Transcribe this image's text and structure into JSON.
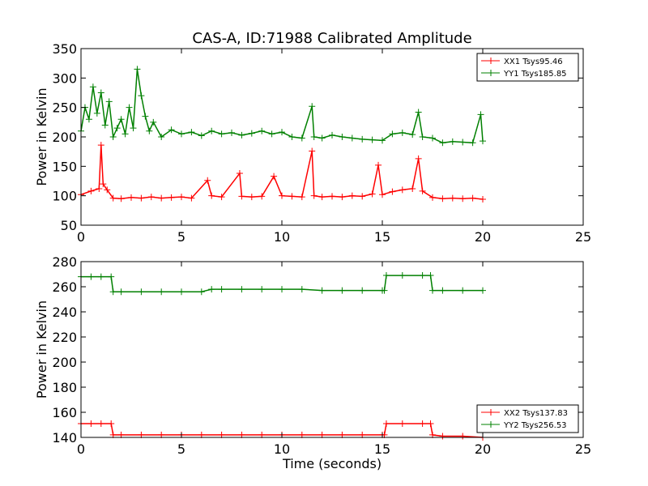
{
  "figure_title": "CAS-A, ID:71988 Calibrated Amplitude",
  "chart_data": [
    {
      "type": "line",
      "title": "CAS-A, ID:71988 Calibrated Amplitude",
      "xlabel": "",
      "ylabel": "Power in Kelvin",
      "xlim": [
        0,
        25
      ],
      "ylim": [
        50,
        350
      ],
      "xticks": [
        0,
        5,
        10,
        15,
        20,
        25
      ],
      "yticks": [
        50,
        100,
        150,
        200,
        250,
        300,
        350
      ],
      "grid": false,
      "legend_position": "top-right",
      "series": [
        {
          "name": "XX1 Tsys95.46",
          "color": "#ff0000",
          "marker": "+",
          "x": [
            0.0,
            0.5,
            0.9,
            1.0,
            1.1,
            1.3,
            1.6,
            2.0,
            2.5,
            3.0,
            3.5,
            4.0,
            4.5,
            5.0,
            5.5,
            6.3,
            6.5,
            7.0,
            7.9,
            8.0,
            8.5,
            9.0,
            9.6,
            10.0,
            10.5,
            11.0,
            11.5,
            11.6,
            12.0,
            12.5,
            13.0,
            13.5,
            14.0,
            14.5,
            14.8,
            15.0,
            15.5,
            16.0,
            16.5,
            16.8,
            17.0,
            17.5,
            18.0,
            18.5,
            19.0,
            19.5,
            20.0
          ],
          "y": [
            102,
            108,
            112,
            186,
            120,
            110,
            96,
            95,
            97,
            96,
            98,
            96,
            97,
            98,
            96,
            126,
            100,
            98,
            138,
            99,
            98,
            99,
            133,
            100,
            99,
            98,
            176,
            100,
            98,
            99,
            98,
            100,
            99,
            103,
            152,
            102,
            107,
            110,
            112,
            163,
            108,
            97,
            95,
            96,
            95,
            96,
            94
          ]
        },
        {
          "name": "YY1 Tsys185.85",
          "color": "#008000",
          "marker": "+",
          "x": [
            0.0,
            0.2,
            0.4,
            0.6,
            0.8,
            1.0,
            1.2,
            1.4,
            1.6,
            1.8,
            2.0,
            2.2,
            2.4,
            2.6,
            2.8,
            3.0,
            3.2,
            3.4,
            3.6,
            4.0,
            4.5,
            5.0,
            5.5,
            6.0,
            6.5,
            7.0,
            7.5,
            8.0,
            8.5,
            9.0,
            9.5,
            10.0,
            10.5,
            11.0,
            11.5,
            11.6,
            12.0,
            12.5,
            13.0,
            13.5,
            14.0,
            14.5,
            15.0,
            15.5,
            16.0,
            16.5,
            16.8,
            17.0,
            17.5,
            18.0,
            18.5,
            19.0,
            19.5,
            19.9,
            20.0
          ],
          "y": [
            210,
            250,
            230,
            285,
            240,
            275,
            220,
            260,
            200,
            215,
            230,
            205,
            250,
            215,
            315,
            270,
            235,
            210,
            225,
            200,
            212,
            205,
            208,
            202,
            210,
            205,
            207,
            203,
            206,
            210,
            205,
            208,
            200,
            198,
            252,
            200,
            198,
            203,
            200,
            198,
            196,
            195,
            194,
            205,
            207,
            204,
            242,
            200,
            198,
            190,
            192,
            191,
            190,
            238,
            193
          ]
        }
      ]
    },
    {
      "type": "line",
      "title": "",
      "xlabel": "Time (seconds)",
      "ylabel": "Power in Kelvin",
      "xlim": [
        0,
        25
      ],
      "ylim": [
        140,
        280
      ],
      "xticks": [
        0,
        5,
        10,
        15,
        20,
        25
      ],
      "yticks": [
        140,
        160,
        180,
        200,
        220,
        240,
        260,
        280
      ],
      "grid": false,
      "legend_position": "bottom-right",
      "series": [
        {
          "name": "XX2 Tsys137.83",
          "color": "#ff0000",
          "marker": "+",
          "x": [
            0.0,
            0.5,
            1.0,
            1.5,
            1.6,
            2.0,
            3.0,
            4.0,
            5.0,
            6.0,
            7.0,
            8.0,
            9.0,
            10.0,
            11.0,
            12.0,
            13.0,
            14.0,
            15.0,
            15.1,
            15.2,
            16.0,
            17.0,
            17.4,
            17.5,
            18.0,
            19.0,
            20.0
          ],
          "y": [
            151,
            151,
            151,
            151,
            142,
            142,
            142,
            142,
            142,
            142,
            142,
            142,
            142,
            142,
            142,
            142,
            142,
            142,
            142,
            142,
            151,
            151,
            151,
            151,
            142,
            141,
            141,
            140
          ]
        },
        {
          "name": "YY2 Tsys256.53",
          "color": "#008000",
          "marker": "+",
          "x": [
            0.0,
            0.5,
            1.0,
            1.5,
            1.6,
            2.0,
            3.0,
            4.0,
            5.0,
            6.0,
            6.5,
            7.0,
            8.0,
            9.0,
            10.0,
            11.0,
            12.0,
            13.0,
            14.0,
            15.0,
            15.1,
            15.2,
            16.0,
            17.0,
            17.4,
            17.5,
            18.0,
            19.0,
            20.0
          ],
          "y": [
            268,
            268,
            268,
            268,
            256,
            256,
            256,
            256,
            256,
            256,
            258,
            258,
            258,
            258,
            258,
            258,
            257,
            257,
            257,
            257,
            257,
            269,
            269,
            269,
            269,
            257,
            257,
            257,
            257
          ]
        }
      ]
    }
  ]
}
